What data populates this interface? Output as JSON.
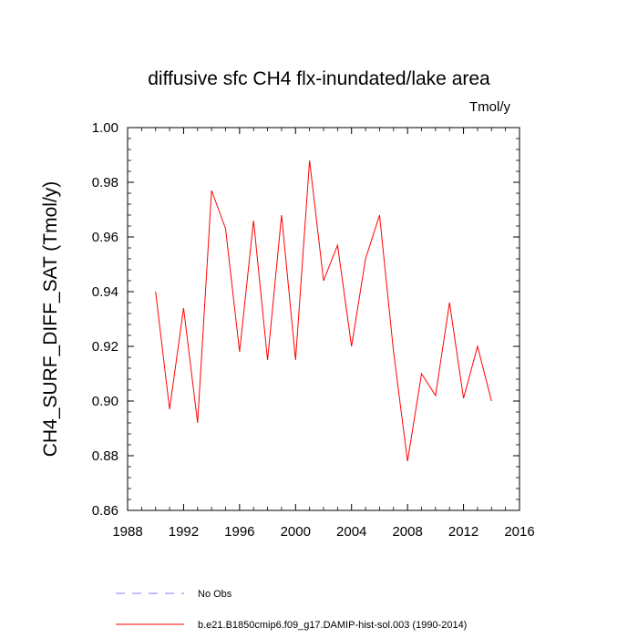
{
  "chart_data": {
    "type": "line",
    "title": "diffusive sfc CH4 flx-inundated/lake area",
    "units_label": "Tmol/y",
    "xlabel": "",
    "ylabel": "CH4_SURF_DIFF_SAT  (Tmol/y)",
    "xlim": [
      1988,
      2016
    ],
    "ylim": [
      0.86,
      1.0
    ],
    "x_ticks": [
      1988,
      1992,
      1996,
      2000,
      2004,
      2008,
      2012,
      2016
    ],
    "x_tick_labels": [
      "1988",
      "1992",
      "1996",
      "2000",
      "2004",
      "2008",
      "2012",
      "2016"
    ],
    "y_ticks": [
      0.86,
      0.88,
      0.9,
      0.92,
      0.94,
      0.96,
      0.98,
      1.0
    ],
    "y_tick_labels": [
      "0.86",
      "0.88",
      "0.90",
      "0.92",
      "0.94",
      "0.96",
      "0.98",
      "1.00"
    ],
    "grid": false,
    "legend_position": "bottom",
    "series": [
      {
        "name": "b.e21.B1850cmip6.f09_g17.DAMIP-hist-sol.003 (1990-2014)",
        "color": "#ff0000",
        "line_style": "solid",
        "x": [
          1990,
          1991,
          1992,
          1993,
          1994,
          1995,
          1996,
          1997,
          1998,
          1999,
          2000,
          2001,
          2002,
          2003,
          2004,
          2005,
          2006,
          2007,
          2008,
          2009,
          2010,
          2011,
          2012,
          2013,
          2014
        ],
        "y": [
          0.94,
          0.897,
          0.934,
          0.892,
          0.977,
          0.963,
          0.918,
          0.966,
          0.915,
          0.968,
          0.915,
          0.988,
          0.944,
          0.957,
          0.92,
          0.952,
          0.968,
          0.918,
          0.878,
          0.91,
          0.902,
          0.936,
          0.901,
          0.92,
          0.9
        ]
      }
    ],
    "legend": [
      {
        "label": "No Obs",
        "color": "#8080ff",
        "line_style": "dashed"
      },
      {
        "label": "b.e21.B1850cmip6.f09_g17.DAMIP-hist-sol.003 (1990-2014)",
        "color": "#ff0000",
        "line_style": "solid"
      }
    ]
  }
}
